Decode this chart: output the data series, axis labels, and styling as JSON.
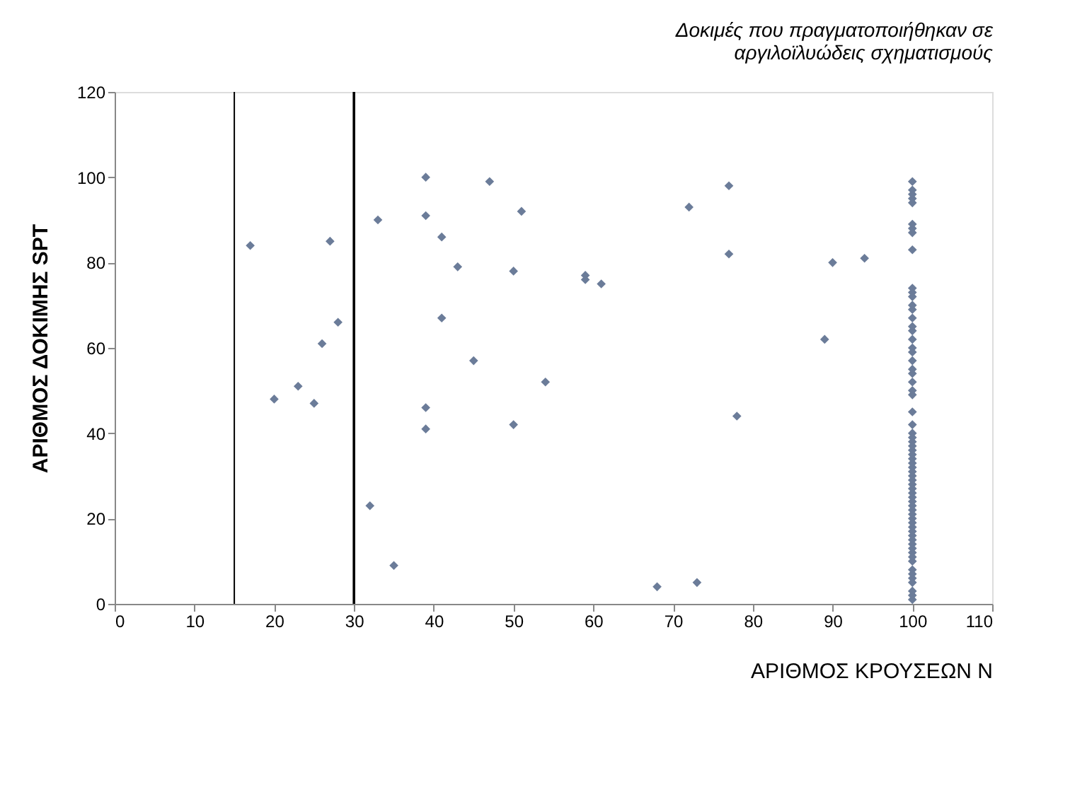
{
  "chart_data": {
    "type": "scatter",
    "title": "Δοκιμές που πραγματοποιήθηκαν σε\nαργιλοϊλυώδεις σχηματισμούς",
    "xlabel": "ΑΡΙΘΜΟΣ ΚΡΟΥΣΕΩΝ Ν",
    "ylabel": "ΑΡΙΘΜΟΣ ΔΟΚΙΜΗΣ SPT",
    "xlim": [
      0,
      110
    ],
    "xticks": [
      0,
      10,
      20,
      30,
      40,
      50,
      60,
      70,
      80,
      90,
      100,
      110
    ],
    "ylim": [
      0,
      120
    ],
    "yticks": [
      0,
      20,
      40,
      60,
      80,
      100,
      120
    ],
    "grid": false,
    "marker": "diamond",
    "ref_lines": [
      {
        "axis": "x",
        "value": 15,
        "color": "#000000"
      },
      {
        "axis": "x",
        "value": 30,
        "color": "#000000"
      }
    ],
    "series": [
      {
        "color": "#6b7c99",
        "x": [
          17,
          20,
          23,
          25,
          26,
          27,
          28,
          32,
          33,
          35,
          39,
          39,
          39,
          39,
          41,
          41,
          43,
          45,
          47,
          50,
          50,
          51,
          54,
          59,
          59,
          61,
          68,
          72,
          73,
          77,
          77,
          78,
          89,
          90,
          94,
          100,
          100,
          100,
          100,
          100,
          100,
          100,
          100,
          100,
          100,
          100,
          100,
          100,
          100,
          100,
          100,
          100,
          100,
          100,
          100,
          100,
          100,
          100,
          100,
          100,
          100,
          100,
          100,
          100,
          100,
          100,
          100,
          100,
          100,
          100,
          100,
          100,
          100,
          100,
          100,
          100,
          100,
          100,
          100,
          100,
          100,
          100,
          100,
          100,
          100,
          100,
          100,
          100,
          100,
          100,
          100,
          100,
          100,
          100,
          100,
          100,
          100,
          100,
          100,
          100,
          100
        ],
        "values": [
          84,
          48,
          51,
          47,
          61,
          85,
          66,
          23,
          90,
          9,
          100,
          91,
          46,
          41,
          86,
          67,
          79,
          57,
          99,
          78,
          42,
          92,
          52,
          77,
          76,
          75,
          4,
          93,
          5,
          98,
          82,
          44,
          62,
          80,
          81,
          1,
          2,
          3,
          6,
          8,
          10,
          12,
          14,
          16,
          18,
          20,
          22,
          24,
          26,
          28,
          30,
          32,
          34,
          36,
          38,
          40,
          42,
          45,
          49,
          50,
          52,
          54,
          55,
          57,
          59,
          60,
          62,
          64,
          65,
          67,
          69,
          70,
          72,
          73,
          74,
          83,
          87,
          88,
          89,
          94,
          95,
          96,
          97,
          11,
          13,
          15,
          17,
          19,
          21,
          23,
          25,
          27,
          29,
          31,
          33,
          35,
          37,
          39,
          7,
          5,
          99
        ]
      }
    ]
  }
}
